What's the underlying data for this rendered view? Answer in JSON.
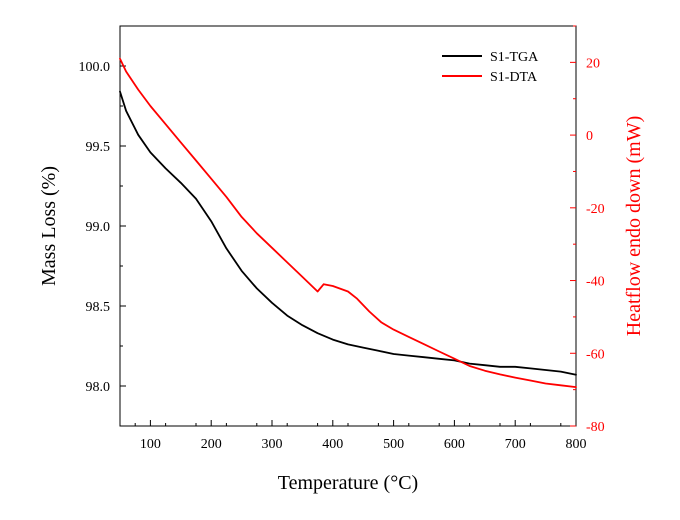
{
  "chart_data": {
    "type": "line",
    "xlabel": "Temperature (°C)",
    "ylabel_left": "Mass Loss (%)",
    "ylabel_right": "Heatflow endo down (mW)",
    "xlim": [
      50,
      800
    ],
    "ylim_left": [
      97.75,
      100.25
    ],
    "ylim_right": [
      -80,
      30
    ],
    "xticks": [
      100,
      200,
      300,
      400,
      500,
      600,
      700,
      800
    ],
    "yticks_left": [
      98.0,
      98.5,
      99.0,
      99.5,
      100.0
    ],
    "yticks_right": [
      -80,
      -60,
      -40,
      -20,
      0,
      20
    ],
    "legend_position": "top-right",
    "grid": false,
    "colors": {
      "tga": "#000000",
      "dta": "#ff0000",
      "axis": "#000000",
      "right_axis": "#ff0000"
    },
    "series": [
      {
        "name": "S1-TGA",
        "axis": "left",
        "x": [
          50,
          60,
          80,
          100,
          125,
          150,
          175,
          200,
          225,
          250,
          275,
          300,
          325,
          350,
          375,
          400,
          425,
          450,
          475,
          500,
          525,
          550,
          575,
          600,
          625,
          650,
          675,
          700,
          725,
          750,
          775,
          800
        ],
        "y": [
          99.84,
          99.72,
          99.57,
          99.46,
          99.36,
          99.27,
          99.17,
          99.03,
          98.86,
          98.72,
          98.61,
          98.52,
          98.44,
          98.38,
          98.33,
          98.29,
          98.26,
          98.24,
          98.22,
          98.2,
          98.19,
          98.18,
          98.17,
          98.16,
          98.14,
          98.13,
          98.12,
          98.12,
          98.11,
          98.1,
          98.09,
          98.07
        ]
      },
      {
        "name": "S1-DTA",
        "axis": "right",
        "x": [
          50,
          60,
          80,
          100,
          125,
          150,
          175,
          200,
          225,
          250,
          275,
          300,
          325,
          350,
          375,
          385,
          400,
          425,
          440,
          460,
          480,
          500,
          525,
          550,
          575,
          600,
          625,
          650,
          675,
          700,
          725,
          750,
          775,
          800
        ],
        "y": [
          21,
          17.5,
          12.5,
          8,
          3,
          -2,
          -7,
          -12,
          -17,
          -22.5,
          -27,
          -31,
          -35,
          -39,
          -43,
          -41,
          -41.5,
          -43,
          -45,
          -48.5,
          -51.5,
          -53.5,
          -55.5,
          -57.5,
          -59.5,
          -61.5,
          -63.5,
          -64.8,
          -65.8,
          -66.7,
          -67.5,
          -68.3,
          -68.8,
          -69.3
        ]
      }
    ]
  }
}
